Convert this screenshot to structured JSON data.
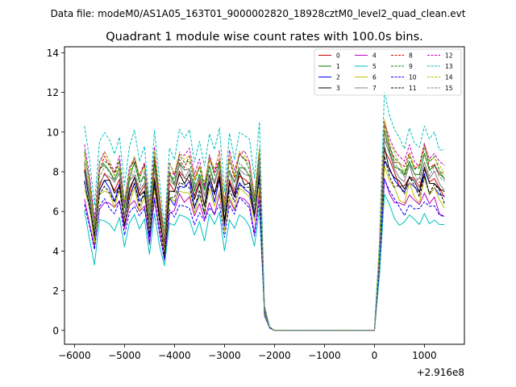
{
  "chart_data": {
    "type": "line",
    "suptitle": "Data file: modeM0/AS1A05_163T01_9000002820_18928cztM0_level2_quad_clean.evt",
    "title": "Quadrant 1 module wise count rates with 100.0s bins.",
    "xlabel": "",
    "ylabel": "",
    "x_offset_label": "+2.916e8",
    "xlim": [
      -6200,
      1800
    ],
    "ylim": [
      -0.7,
      14.3
    ],
    "xticks": [
      -6000,
      -5000,
      -4000,
      -3000,
      -2000,
      -1000,
      0,
      1000
    ],
    "xtick_labels": [
      "−6000",
      "−5000",
      "−4000",
      "−3000",
      "−2000",
      "−1000",
      "0",
      "1000"
    ],
    "yticks": [
      0,
      2,
      4,
      6,
      8,
      10,
      12,
      14
    ],
    "ytick_labels": [
      "0",
      "2",
      "4",
      "6",
      "8",
      "10",
      "12",
      "14"
    ],
    "x_start": -5800,
    "x_step": 100,
    "legend_position": "upper right",
    "profile": [
      1.0,
      0.82,
      0.6,
      0.92,
      0.97,
      0.93,
      0.88,
      0.95,
      0.72,
      0.9,
      0.96,
      0.85,
      0.92,
      0.65,
      0.97,
      0.74,
      0.52,
      0.9,
      0.86,
      0.98,
      0.94,
      0.97,
      0.84,
      0.92,
      0.8,
      0.96,
      0.88,
      0.98,
      0.7,
      0.96,
      0.86,
      0.98,
      0.96,
      0.92,
      0.74,
      1.0,
      0.12,
      0.02,
      0,
      0,
      0,
      0,
      0,
      0,
      0,
      0,
      0,
      0,
      0,
      0,
      0,
      0,
      0,
      0,
      0,
      0,
      0,
      0,
      0,
      0.45,
      1.15,
      1.05,
      0.97,
      0.93,
      0.9,
      0.99,
      0.93,
      0.9,
      1.02,
      0.93,
      0.96,
      0.9,
      0.87
    ],
    "series": [
      {
        "name": "0",
        "color": "#cc0000",
        "dash": "solid",
        "level": 8.0
      },
      {
        "name": "1",
        "color": "#007f00",
        "dash": "solid",
        "level": 8.6
      },
      {
        "name": "2",
        "color": "#0000ff",
        "dash": "solid",
        "level": 7.6
      },
      {
        "name": "3",
        "color": "#000000",
        "dash": "solid",
        "level": 7.9
      },
      {
        "name": "4",
        "color": "#bf00bf",
        "dash": "solid",
        "level": 6.8
      },
      {
        "name": "5",
        "color": "#00bfbf",
        "dash": "solid",
        "level": 5.9
      },
      {
        "name": "6",
        "color": "#bfbf00",
        "dash": "solid",
        "level": 7.3
      },
      {
        "name": "7",
        "color": "#7f7f7f",
        "dash": "solid",
        "level": 8.3
      },
      {
        "name": "8",
        "color": "#cc0000",
        "dash": "dashed",
        "level": 9.0
      },
      {
        "name": "9",
        "color": "#007f00",
        "dash": "dashed",
        "level": 8.9
      },
      {
        "name": "10",
        "color": "#0000ff",
        "dash": "dashed",
        "level": 6.6
      },
      {
        "name": "11",
        "color": "#000000",
        "dash": "dashed",
        "level": 7.6
      },
      {
        "name": "12",
        "color": "#bf00bf",
        "dash": "dashed",
        "level": 9.3
      },
      {
        "name": "13",
        "color": "#00bfbf",
        "dash": "dashed",
        "level": 10.3
      },
      {
        "name": "14",
        "color": "#bfbf00",
        "dash": "dashed",
        "level": 9.1
      },
      {
        "name": "15",
        "color": "#7f7f7f",
        "dash": "dashed",
        "level": 8.5
      }
    ]
  }
}
